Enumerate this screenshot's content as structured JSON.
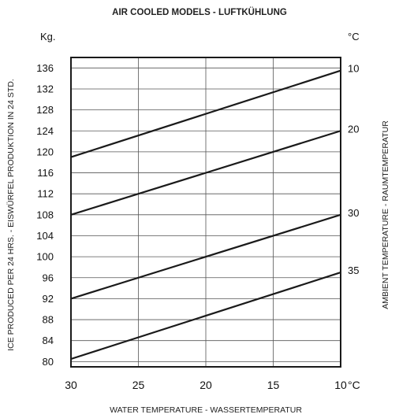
{
  "chart_data": {
    "type": "line",
    "title": "AIR COOLED MODELS - LUFTKÜHLUNG",
    "xlabel": "WATER TEMPERATURE - WASSERTEMPERATUR",
    "ylabel": "ICE PRODUCED PER 24 HRS. - EISWÜRFEL PRODUKTION IN 24 STD.",
    "ylabel_right": "AMBIENT TEMPERATURE - RAUMTEMPERATUR",
    "y_unit": "Kg.",
    "right_unit": "°C",
    "x_unit": "°C",
    "x_reversed": true,
    "xlim": [
      30,
      10
    ],
    "ylim": [
      79,
      138
    ],
    "x_ticks": [
      30,
      25,
      20,
      15,
      10
    ],
    "y_ticks": [
      80,
      84,
      88,
      92,
      96,
      100,
      104,
      108,
      112,
      116,
      120,
      124,
      128,
      132,
      136
    ],
    "grid": true,
    "series": [
      {
        "name": "10",
        "x": [
          30,
          10
        ],
        "values": [
          119,
          135.5
        ]
      },
      {
        "name": "20",
        "x": [
          30,
          10
        ],
        "values": [
          108,
          124
        ]
      },
      {
        "name": "30",
        "x": [
          30,
          10
        ],
        "values": [
          92,
          108
        ]
      },
      {
        "name": "35",
        "x": [
          30,
          10
        ],
        "values": [
          80.5,
          97
        ]
      }
    ],
    "line_color": "#1a1a1a"
  }
}
